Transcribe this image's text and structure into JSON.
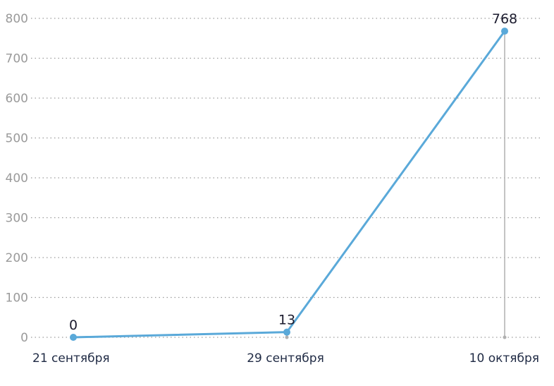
{
  "chart_data": {
    "type": "line",
    "title": "",
    "xlabel": "",
    "ylabel": "",
    "categories": [
      "21 сентября",
      "29 сентября",
      "10 октября"
    ],
    "series": [
      {
        "values": [
          0,
          13,
          768
        ]
      }
    ],
    "data_labels": [
      "0",
      "13",
      "768"
    ],
    "yticks": [
      0,
      100,
      200,
      300,
      400,
      500,
      600,
      700,
      800
    ],
    "ylim": [
      0,
      800
    ],
    "grid": true,
    "colors": {
      "line": "#5aa9d9",
      "marker": "#5aa9d9",
      "dropline": "#b0b0b0",
      "grid": "#9a9a9a"
    }
  }
}
